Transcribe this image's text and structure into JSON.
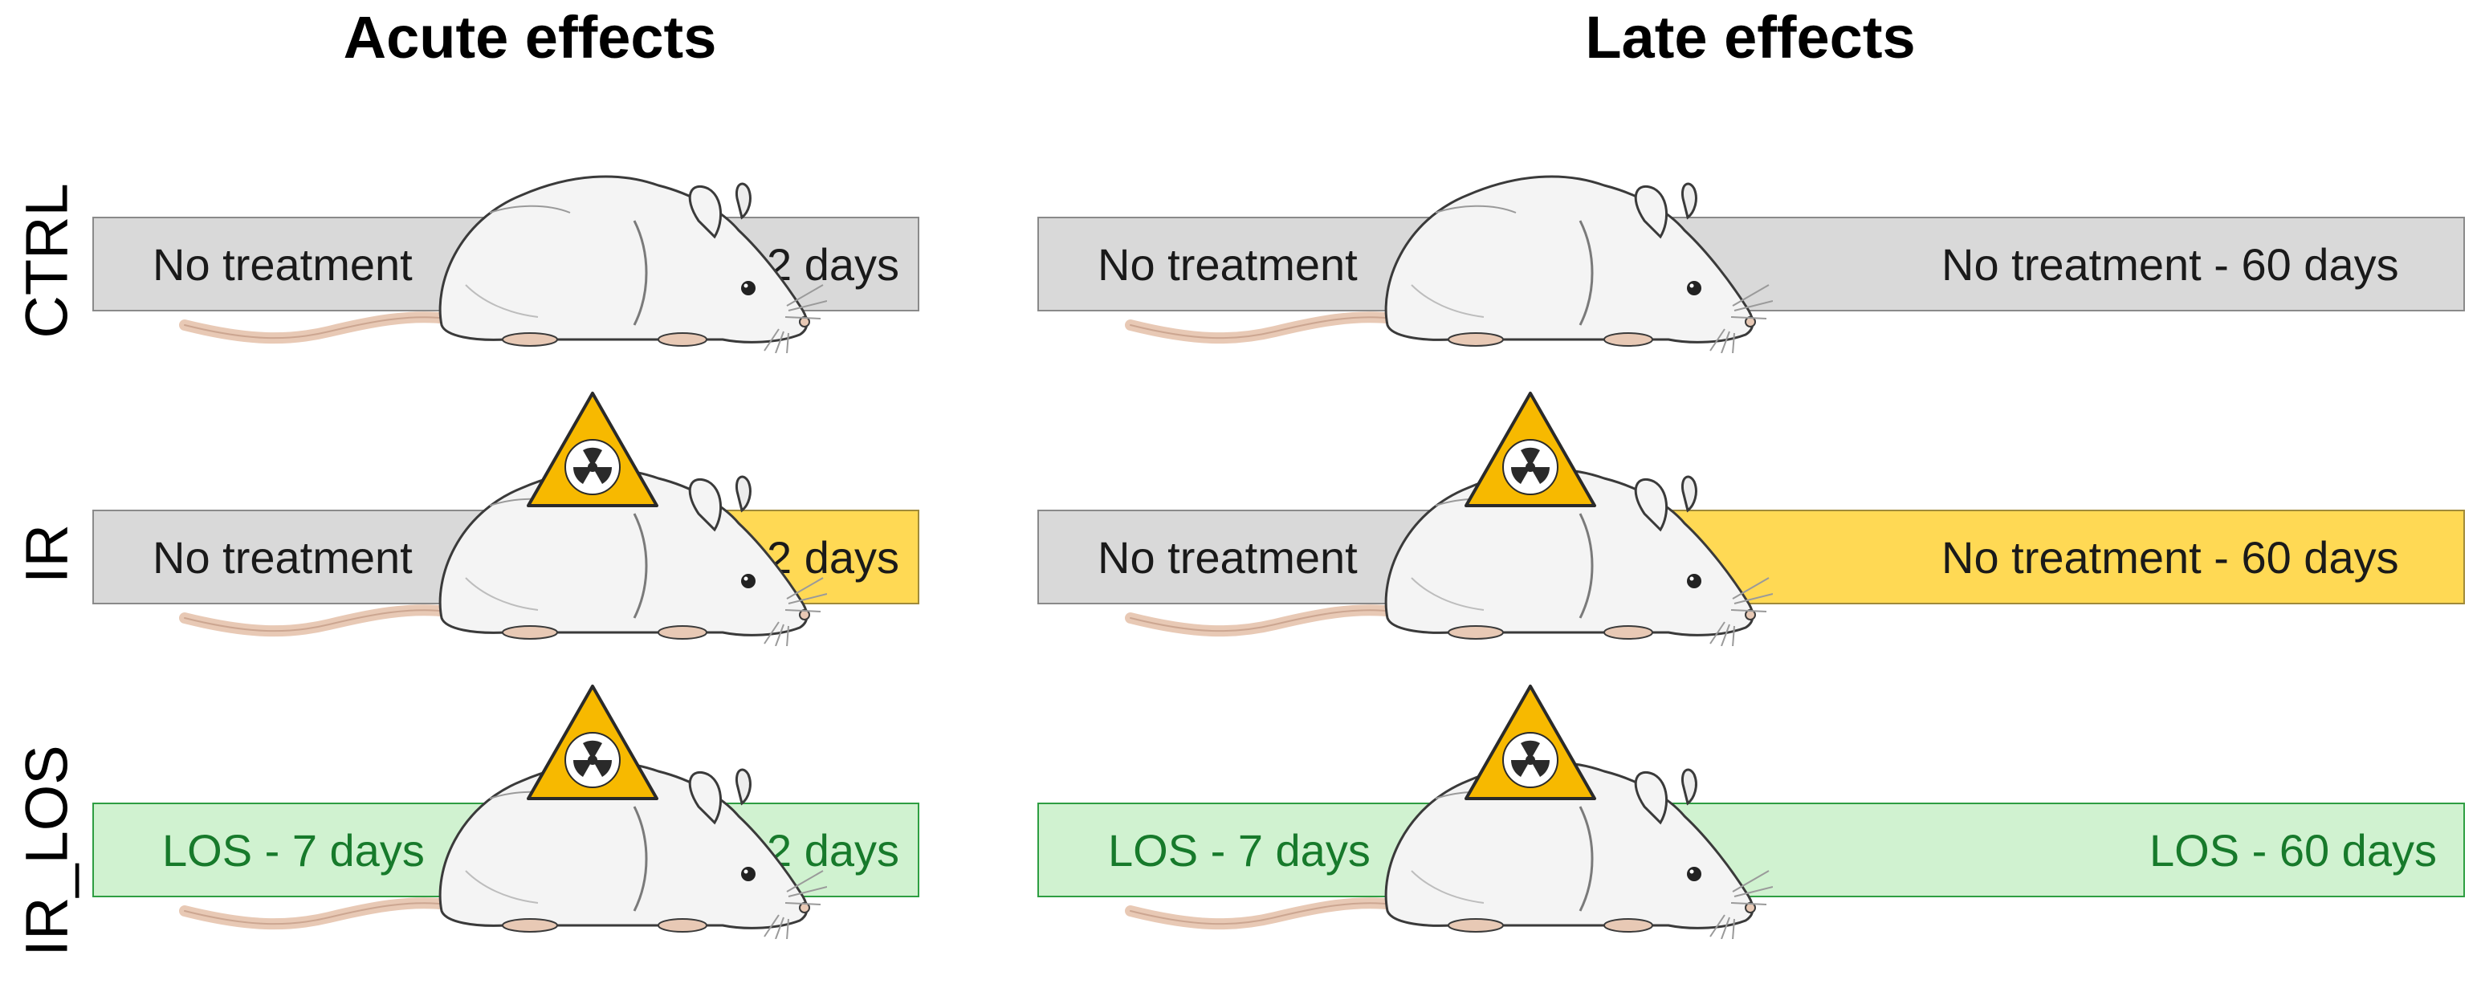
{
  "columns": {
    "acute": {
      "title": "Acute effects"
    },
    "late": {
      "title": "Late effects"
    }
  },
  "rows": [
    {
      "label": "CTRL"
    },
    {
      "label": "IR"
    },
    {
      "label": "IR_LOS"
    }
  ],
  "acute": {
    "ctrl": {
      "pre": "No treatment",
      "post": "2 days"
    },
    "ir": {
      "pre": "No treatment",
      "post": "2 days"
    },
    "ir_los": {
      "pre": "LOS - 7 days",
      "post": "2 days"
    }
  },
  "late": {
    "ctrl": {
      "pre": "No treatment",
      "post": "No treatment - 60 days"
    },
    "ir": {
      "pre": "No treatment",
      "post": "No treatment - 60 days"
    },
    "ir_los": {
      "pre": "LOS - 7 days",
      "post": "LOS - 60 days"
    }
  },
  "colors": {
    "no_treatment_bar": "#d9d9d9",
    "irradiated_bar": "#ffd954",
    "los_bar": "#d0f2d0",
    "los_text": "#177a2b",
    "hazard_yellow": "#f7b900"
  },
  "icons": [
    "mouse-icon",
    "radiation-hazard-icon"
  ]
}
